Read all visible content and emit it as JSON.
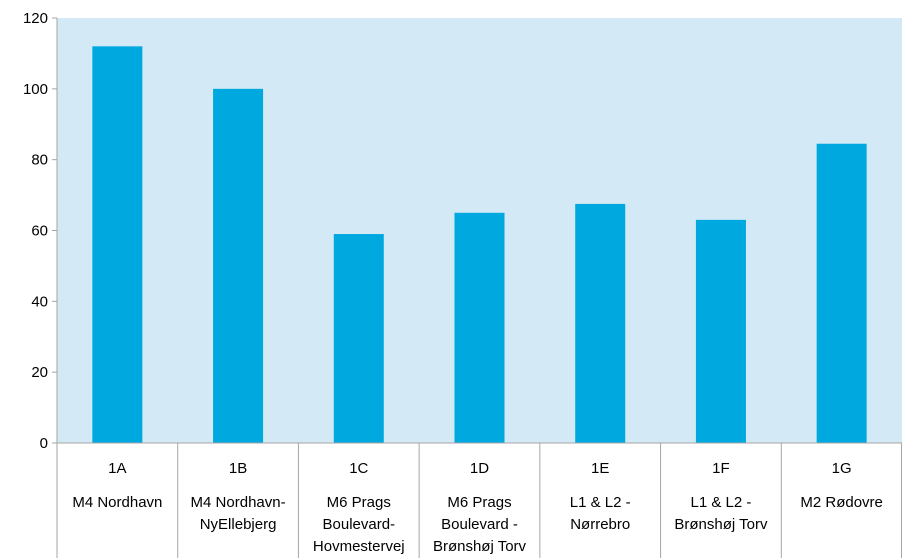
{
  "chart_data": {
    "type": "bar",
    "categories": [
      {
        "code": "1A",
        "lines": [
          "M4 Nordhavn"
        ]
      },
      {
        "code": "1B",
        "lines": [
          "M4 Nordhavn-",
          "NyEllebjerg"
        ]
      },
      {
        "code": "1C",
        "lines": [
          "M6 Prags",
          "Boulevard-",
          "Hovmestervej"
        ]
      },
      {
        "code": "1D",
        "lines": [
          "M6 Prags",
          "Boulevard -",
          "Brønshøj Torv"
        ]
      },
      {
        "code": "1E",
        "lines": [
          "L1 & L2 -",
          "Nørrebro"
        ]
      },
      {
        "code": "1F",
        "lines": [
          "L1 & L2 -",
          "Brønshøj Torv"
        ]
      },
      {
        "code": "1G",
        "lines": [
          "M2 Rødovre"
        ]
      }
    ],
    "values": [
      112,
      100,
      59,
      65,
      67.5,
      63,
      84.5
    ],
    "ylim": [
      0,
      120
    ],
    "yticks": [
      0,
      20,
      40,
      60,
      80,
      100,
      120
    ],
    "grid": false,
    "colors": {
      "bar": "#00a8e0",
      "plot_background": "#d3e9f6",
      "axis": "#a6a6a6"
    }
  }
}
